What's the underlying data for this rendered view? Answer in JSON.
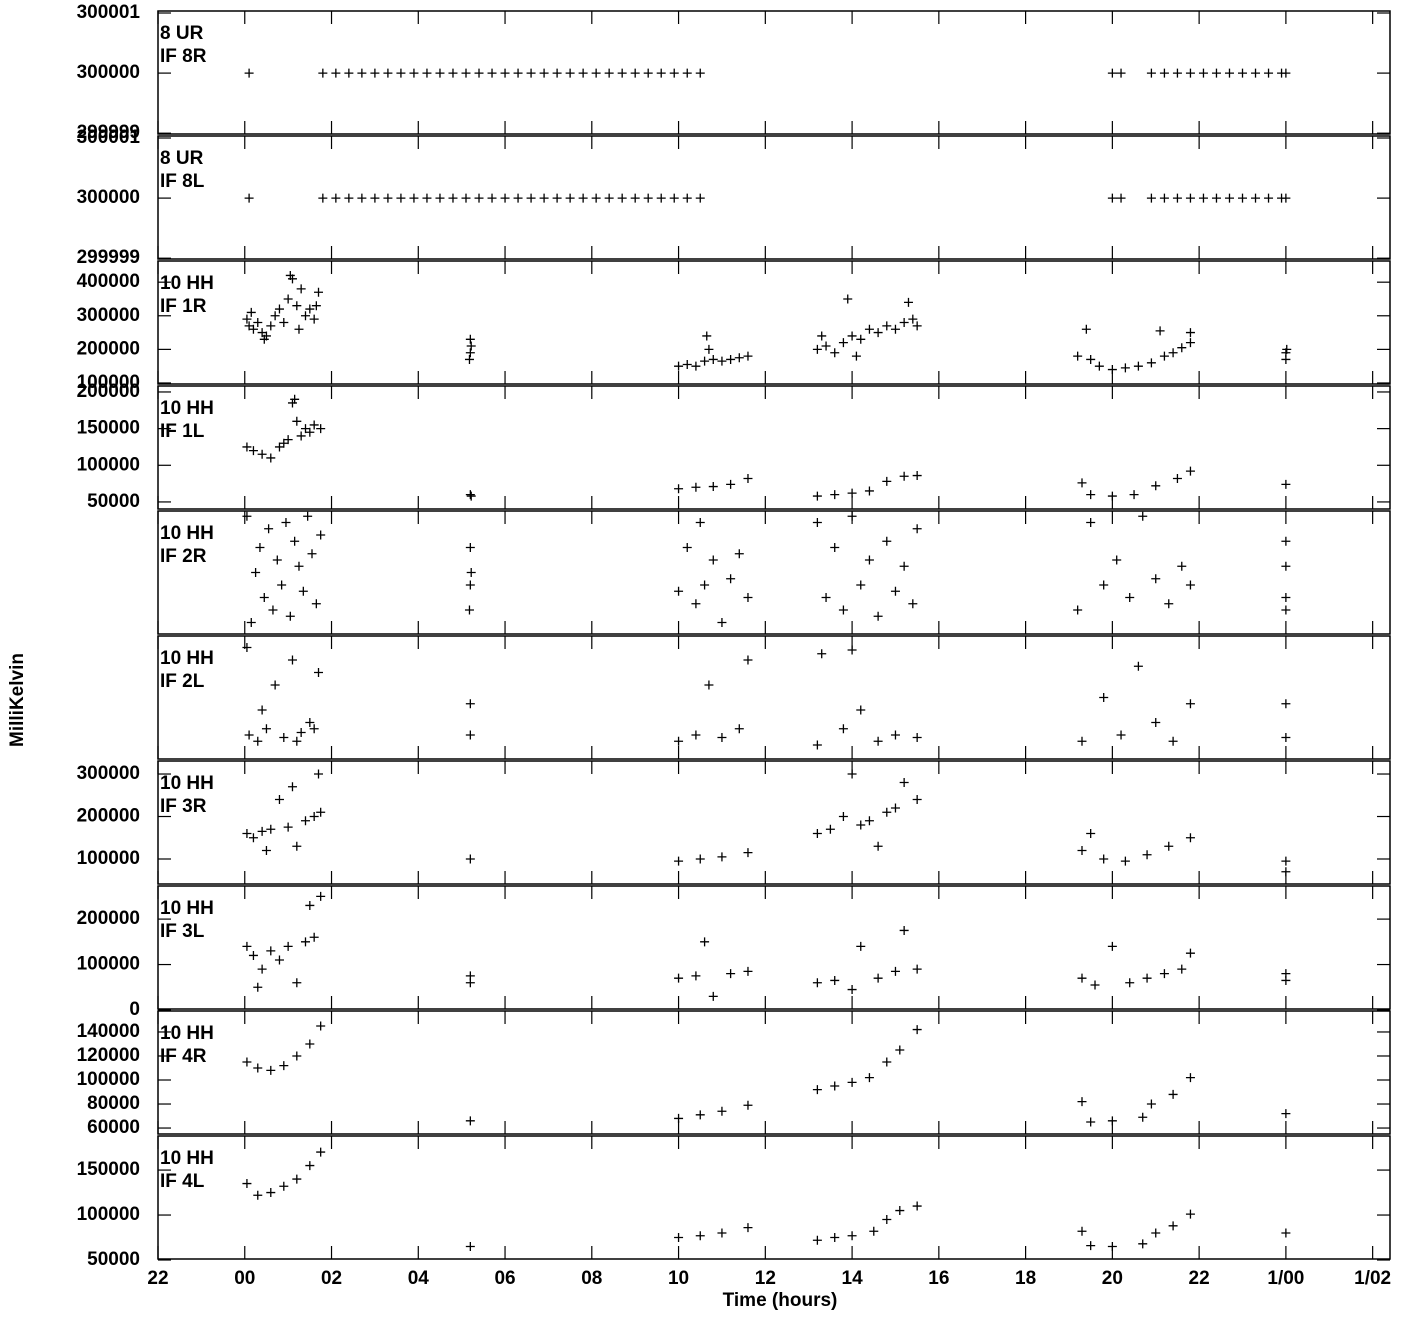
{
  "chart_data": {
    "type": "scatter",
    "color": "#000000",
    "xlabel": "Time (hours)",
    "ylabel": "MilliKelvin",
    "xlim": [
      -2,
      26.4
    ],
    "xticks": [
      {
        "value": -2,
        "label": "22"
      },
      {
        "value": 0,
        "label": "00"
      },
      {
        "value": 2,
        "label": "02"
      },
      {
        "value": 4,
        "label": "04"
      },
      {
        "value": 6,
        "label": "06"
      },
      {
        "value": 8,
        "label": "08"
      },
      10,
      12,
      14,
      16,
      18,
      20,
      22,
      {
        "value": 24,
        "label": "1/00"
      },
      {
        "value": 26,
        "label": "1/02"
      }
    ],
    "panels": [
      {
        "labels": [
          "8 UR",
          "IF 8R"
        ],
        "ylim": [
          299998.97,
          300001.05
        ],
        "yticks": [
          299999,
          300000,
          300001
        ],
        "x": [
          0.1,
          1.8,
          2.1,
          2.4,
          2.7,
          3.0,
          3.3,
          3.6,
          3.9,
          4.2,
          4.5,
          4.8,
          5.1,
          5.4,
          5.7,
          6.0,
          6.3,
          6.6,
          6.9,
          7.2,
          7.5,
          7.8,
          8.1,
          8.4,
          8.7,
          9.0,
          9.3,
          9.6,
          9.9,
          10.2,
          10.5,
          20.0,
          20.2,
          20.9,
          21.2,
          21.5,
          21.8,
          22.1,
          22.4,
          22.7,
          23.0,
          23.3,
          23.6,
          23.9,
          24.0
        ],
        "values": [
          300000,
          300000,
          300000,
          300000,
          300000,
          300000,
          300000,
          300000,
          300000,
          300000,
          300000,
          300000,
          300000,
          300000,
          300000,
          300000,
          300000,
          300000,
          300000,
          300000,
          300000,
          300000,
          300000,
          300000,
          300000,
          300000,
          300000,
          300000,
          300000,
          300000,
          300000,
          300000,
          300000,
          300000,
          300000,
          300000,
          300000,
          300000,
          300000,
          300000,
          300000,
          300000,
          300000,
          300000,
          300000
        ]
      },
      {
        "labels": [
          "8 UR",
          "IF 8L"
        ],
        "ylim": [
          299998.97,
          300001.05
        ],
        "yticks": [
          299999,
          300000,
          300001
        ],
        "x": [
          0.1,
          1.8,
          2.1,
          2.4,
          2.7,
          3.0,
          3.3,
          3.6,
          3.9,
          4.2,
          4.5,
          4.8,
          5.1,
          5.4,
          5.7,
          6.0,
          6.3,
          6.6,
          6.9,
          7.2,
          7.5,
          7.8,
          8.1,
          8.4,
          8.7,
          9.0,
          9.3,
          9.6,
          9.9,
          10.2,
          10.5,
          20.0,
          20.2,
          20.9,
          21.2,
          21.5,
          21.8,
          22.1,
          22.4,
          22.7,
          23.0,
          23.3,
          23.6,
          23.9,
          24.0
        ],
        "values": [
          300000,
          300000,
          300000,
          300000,
          300000,
          300000,
          300000,
          300000,
          300000,
          300000,
          300000,
          300000,
          300000,
          300000,
          300000,
          300000,
          300000,
          300000,
          300000,
          300000,
          300000,
          300000,
          300000,
          300000,
          300000,
          300000,
          300000,
          300000,
          300000,
          300000,
          300000,
          300000,
          300000,
          300000,
          300000,
          300000,
          300000,
          300000,
          300000,
          300000,
          300000,
          300000,
          300000,
          300000,
          300000
        ]
      },
      {
        "labels": [
          "10 HH",
          "IF 1R"
        ],
        "ylim": [
          94000,
          466000
        ],
        "yticks": [
          100000,
          200000,
          300000,
          400000
        ],
        "x": [
          0.05,
          0.1,
          0.15,
          0.2,
          0.3,
          0.4,
          0.45,
          0.5,
          0.6,
          0.7,
          0.8,
          0.9,
          1.0,
          1.05,
          1.1,
          1.2,
          1.25,
          1.3,
          1.4,
          1.5,
          1.6,
          1.65,
          1.7,
          5.18,
          5.2,
          5.22,
          5.2,
          10.0,
          10.2,
          10.4,
          10.6,
          10.65,
          10.7,
          10.8,
          11.0,
          11.2,
          11.4,
          11.6,
          13.2,
          13.3,
          13.4,
          13.6,
          13.8,
          13.9,
          14.0,
          14.1,
          14.2,
          14.4,
          14.6,
          14.8,
          15.0,
          15.2,
          15.3,
          15.4,
          15.5,
          19.2,
          19.4,
          19.5,
          19.7,
          20.0,
          20.3,
          20.6,
          20.9,
          21.1,
          21.2,
          21.4,
          21.6,
          21.8,
          21.8,
          24.0,
          24.0,
          24.02
        ],
        "values": [
          290000,
          270000,
          310000,
          260000,
          280000,
          250000,
          230000,
          240000,
          270000,
          300000,
          320000,
          280000,
          350000,
          420000,
          410000,
          330000,
          260000,
          380000,
          300000,
          320000,
          290000,
          330000,
          370000,
          170000,
          190000,
          210000,
          230000,
          150000,
          155000,
          150000,
          165000,
          240000,
          200000,
          170000,
          165000,
          170000,
          175000,
          180000,
          200000,
          240000,
          210000,
          190000,
          220000,
          350000,
          240000,
          180000,
          230000,
          260000,
          250000,
          270000,
          260000,
          280000,
          340000,
          290000,
          270000,
          180000,
          260000,
          170000,
          150000,
          140000,
          145000,
          150000,
          160000,
          255000,
          180000,
          190000,
          205000,
          220000,
          250000,
          170000,
          190000,
          200000
        ]
      },
      {
        "labels": [
          "10 HH",
          "IF 1L"
        ],
        "ylim": [
          39000,
          209500
        ],
        "yticks": [
          50000,
          100000,
          150000,
          200000
        ],
        "x": [
          0.05,
          0.2,
          0.4,
          0.6,
          0.8,
          0.9,
          1.0,
          1.1,
          1.15,
          1.2,
          1.3,
          1.4,
          1.5,
          1.6,
          1.75,
          5.2,
          5.22,
          10.0,
          10.4,
          10.8,
          11.2,
          11.6,
          13.2,
          13.6,
          14.0,
          14.4,
          14.8,
          15.2,
          15.5,
          19.3,
          19.5,
          20.0,
          20.5,
          21.0,
          21.5,
          21.8,
          24.0
        ],
        "values": [
          125000,
          120000,
          115000,
          110000,
          125000,
          130000,
          135000,
          185000,
          190000,
          160000,
          140000,
          150000,
          145000,
          155000,
          150000,
          60000,
          58000,
          68000,
          70000,
          71000,
          74000,
          82000,
          58000,
          60000,
          62000,
          65000,
          78000,
          85000,
          86000,
          76000,
          60000,
          58000,
          60000,
          72000,
          82000,
          92000,
          74000
        ]
      },
      {
        "labels": [
          "10 HH",
          "IF 2R"
        ],
        "ylim": [
          0,
          100
        ],
        "x": [
          0.05,
          0.15,
          0.25,
          0.35,
          0.45,
          0.55,
          0.65,
          0.75,
          0.85,
          0.95,
          1.05,
          1.15,
          1.25,
          1.35,
          1.45,
          1.55,
          1.65,
          1.75,
          5.18,
          5.2,
          5.22,
          5.2,
          10.0,
          10.2,
          10.4,
          10.5,
          10.6,
          10.8,
          11.0,
          11.2,
          11.4,
          11.6,
          13.2,
          13.4,
          13.6,
          13.8,
          14.0,
          14.2,
          14.4,
          14.6,
          14.8,
          15.0,
          15.2,
          15.4,
          15.5,
          19.2,
          19.5,
          19.8,
          20.1,
          20.4,
          20.7,
          21.0,
          21.3,
          21.6,
          21.8,
          24.0,
          24.0,
          24.0,
          24.0
        ],
        "values": [
          95,
          10,
          50,
          70,
          30,
          85,
          20,
          60,
          40,
          90,
          15,
          75,
          55,
          35,
          95,
          65,
          25,
          80,
          20,
          40,
          50,
          70,
          35,
          70,
          25,
          90,
          40,
          60,
          10,
          45,
          65,
          30,
          90,
          30,
          70,
          20,
          95,
          40,
          60,
          15,
          75,
          35,
          55,
          25,
          85,
          20,
          90,
          40,
          60,
          30,
          95,
          45,
          25,
          55,
          40,
          20,
          30,
          55,
          75
        ]
      },
      {
        "labels": [
          "10 HH",
          "IF 2L"
        ],
        "ylim": [
          0,
          100
        ],
        "x": [
          0.05,
          0.1,
          0.3,
          0.4,
          0.5,
          0.7,
          0.9,
          1.1,
          1.2,
          1.3,
          1.5,
          1.6,
          1.7,
          5.2,
          5.2,
          10.0,
          10.4,
          10.7,
          11.0,
          11.4,
          11.6,
          13.2,
          13.3,
          13.8,
          14.0,
          14.2,
          14.6,
          15.0,
          15.5,
          19.3,
          19.8,
          20.2,
          20.6,
          21.0,
          21.4,
          21.8,
          24.0,
          24.0
        ],
        "values": [
          90,
          20,
          15,
          40,
          25,
          60,
          18,
          80,
          15,
          22,
          30,
          25,
          70,
          20,
          45,
          15,
          20,
          60,
          18,
          25,
          80,
          12,
          85,
          25,
          88,
          40,
          15,
          20,
          18,
          15,
          50,
          20,
          75,
          30,
          15,
          45,
          18,
          45
        ]
      },
      {
        "labels": [
          "10 HH",
          "IF 3R"
        ],
        "ylim": [
          38800,
          333000
        ],
        "yticks": [
          100000,
          200000,
          300000
        ],
        "x": [
          0.05,
          0.2,
          0.4,
          0.5,
          0.6,
          0.8,
          1.0,
          1.1,
          1.2,
          1.4,
          1.6,
          1.7,
          1.75,
          5.2,
          10.0,
          10.5,
          11.0,
          11.6,
          13.2,
          13.5,
          13.8,
          14.0,
          14.2,
          14.4,
          14.6,
          14.8,
          15.0,
          15.2,
          15.5,
          19.3,
          19.5,
          19.8,
          20.3,
          20.8,
          21.3,
          21.8,
          24.0,
          24.0
        ],
        "values": [
          160000,
          150000,
          165000,
          120000,
          170000,
          240000,
          175000,
          270000,
          130000,
          190000,
          200000,
          300000,
          210000,
          100000,
          95000,
          100000,
          105000,
          115000,
          160000,
          170000,
          200000,
          300000,
          180000,
          190000,
          130000,
          210000,
          220000,
          280000,
          240000,
          120000,
          160000,
          100000,
          95000,
          110000,
          130000,
          150000,
          95000,
          70000
        ]
      },
      {
        "labels": [
          "10 HH",
          "IF 3L"
        ],
        "ylim": [
          0,
          275000
        ],
        "yticks": [
          0,
          100000,
          200000
        ],
        "x": [
          0.05,
          0.2,
          0.3,
          0.4,
          0.6,
          0.8,
          1.0,
          1.2,
          1.4,
          1.5,
          1.6,
          1.75,
          5.2,
          5.2,
          10.0,
          10.4,
          10.6,
          10.8,
          11.2,
          11.6,
          13.2,
          13.6,
          14.0,
          14.2,
          14.6,
          15.0,
          15.2,
          15.5,
          19.3,
          19.6,
          20.0,
          20.4,
          20.8,
          21.2,
          21.6,
          21.8,
          24.0,
          24.0
        ],
        "values": [
          140000,
          120000,
          50000,
          90000,
          130000,
          110000,
          140000,
          60000,
          150000,
          230000,
          160000,
          250000,
          60000,
          75000,
          70000,
          75000,
          150000,
          30000,
          80000,
          85000,
          60000,
          65000,
          45000,
          140000,
          70000,
          85000,
          175000,
          90000,
          70000,
          55000,
          140000,
          60000,
          70000,
          80000,
          90000,
          125000,
          80000,
          65000
        ]
      },
      {
        "labels": [
          "10 HH",
          "IF 4R"
        ],
        "ylim": [
          54200,
          158300
        ],
        "yticks": [
          60000,
          80000,
          100000,
          120000,
          140000
        ],
        "x": [
          0.05,
          0.3,
          0.6,
          0.9,
          1.2,
          1.5,
          1.75,
          5.2,
          10.0,
          10.5,
          11.0,
          11.6,
          13.2,
          13.6,
          14.0,
          14.4,
          14.8,
          15.1,
          15.5,
          19.3,
          19.5,
          20.0,
          20.7,
          20.9,
          21.4,
          21.8,
          24.0
        ],
        "values": [
          115000,
          110000,
          108000,
          112000,
          120000,
          130000,
          145000,
          66000,
          68000,
          71000,
          74000,
          79000,
          92000,
          95000,
          98000,
          102000,
          115000,
          125000,
          142000,
          82000,
          65000,
          66000,
          69000,
          80000,
          88000,
          102000,
          72000
        ]
      },
      {
        "labels": [
          "10 HH",
          "IF 4L"
        ],
        "ylim": [
          50000,
          189000
        ],
        "yticks": [
          50000,
          100000,
          150000
        ],
        "x": [
          0.05,
          0.3,
          0.6,
          0.9,
          1.2,
          1.5,
          1.75,
          5.2,
          10.0,
          10.5,
          11.0,
          11.6,
          13.2,
          13.6,
          14.0,
          14.5,
          14.8,
          15.1,
          15.5,
          19.3,
          19.5,
          20.0,
          20.7,
          21.0,
          21.4,
          21.8,
          24.0
        ],
        "values": [
          135000,
          122000,
          125000,
          132000,
          140000,
          155000,
          170000,
          65000,
          75000,
          77000,
          80000,
          86000,
          72000,
          75000,
          77000,
          82000,
          95000,
          105000,
          110000,
          82000,
          66000,
          65000,
          68000,
          80000,
          88000,
          101000,
          80000
        ]
      }
    ]
  }
}
